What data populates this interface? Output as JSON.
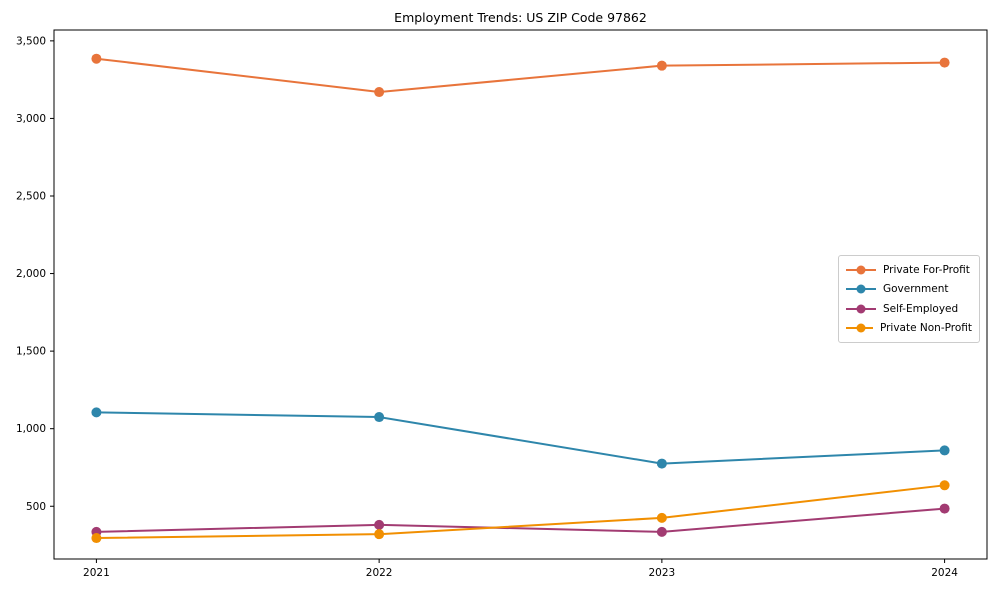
{
  "chart_data": {
    "type": "line",
    "title": "Employment Trends: US ZIP Code 97862",
    "x": [
      2021,
      2022,
      2023,
      2024
    ],
    "series": [
      {
        "name": "Private For-Profit",
        "color": "#E8743B",
        "values": [
          3385,
          3170,
          3340,
          3360
        ]
      },
      {
        "name": "Government",
        "color": "#2E86AB",
        "values": [
          1105,
          1075,
          775,
          860
        ]
      },
      {
        "name": "Self-Employed",
        "color": "#A23B72",
        "values": [
          335,
          380,
          335,
          485
        ]
      },
      {
        "name": "Private Non-Profit",
        "color": "#F18F01",
        "values": [
          295,
          320,
          425,
          635
        ]
      }
    ],
    "yticks": [
      500,
      1000,
      1500,
      2000,
      2500,
      3000,
      3500
    ],
    "ytick_labels": [
      "500",
      "1,000",
      "1,500",
      "2,000",
      "2,500",
      "3,000",
      "3,500"
    ],
    "xtick_labels": [
      "2021",
      "2022",
      "2023",
      "2024"
    ],
    "xlim": [
      2020.85,
      2024.15
    ],
    "ylim": [
      160,
      3570
    ],
    "grid": false,
    "legend_position": "center right",
    "spine_color": "#000000",
    "legend_border_color": "#cccccc",
    "background_color": "#ffffff"
  }
}
